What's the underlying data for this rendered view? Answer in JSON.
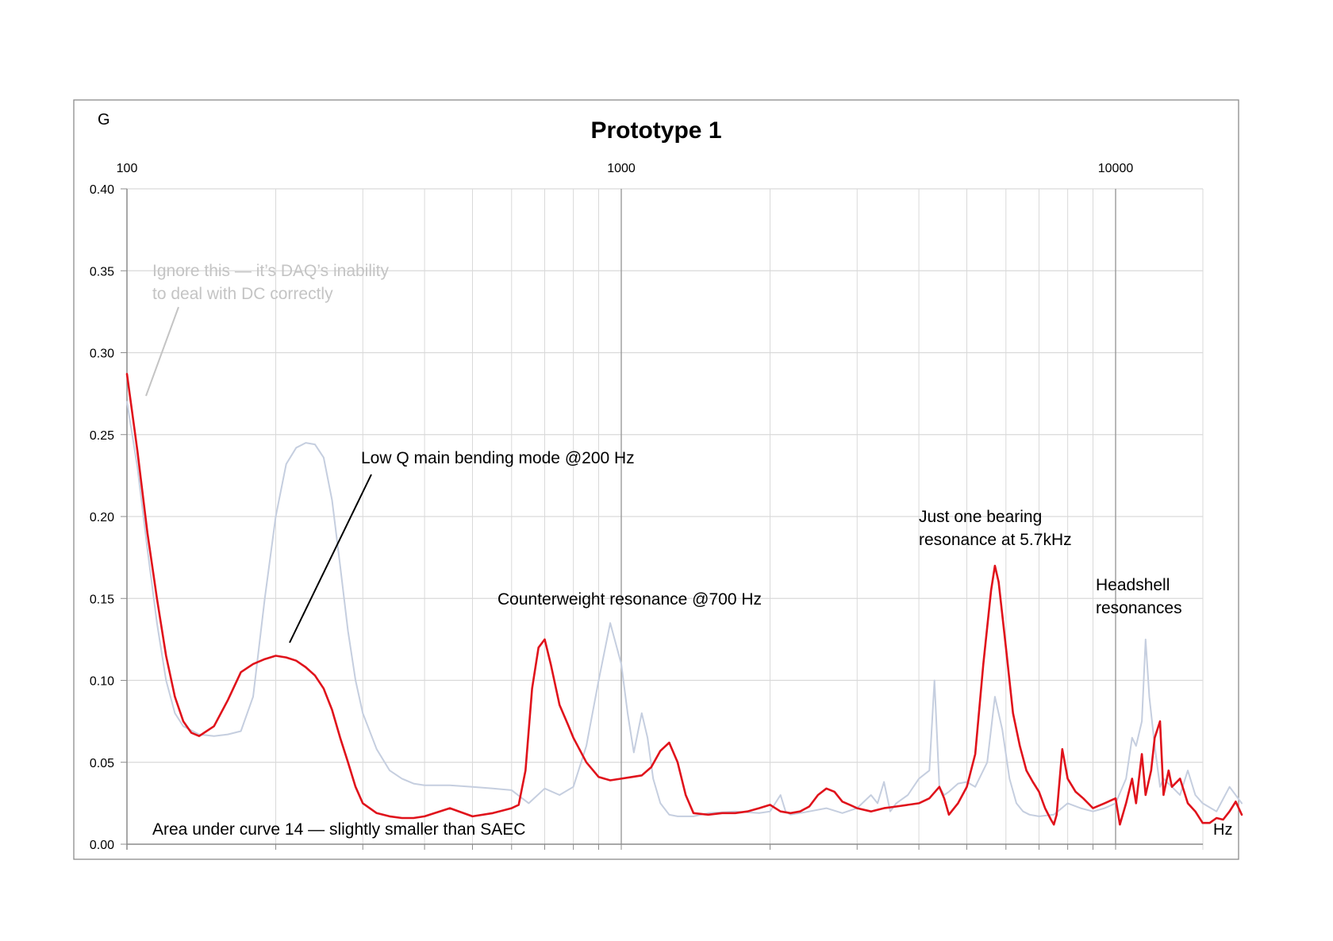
{
  "chart_data": {
    "type": "line",
    "title": "Prototype 1",
    "ylabel": "G",
    "xlabel": "Hz",
    "x_scale": "log",
    "xlim": [
      100,
      18000
    ],
    "ylim": [
      0,
      0.4
    ],
    "y_ticks": [
      "0.00",
      "0.05",
      "0.10",
      "0.15",
      "0.20",
      "0.25",
      "0.30",
      "0.35",
      "0.40"
    ],
    "x_ticks": [
      "100",
      "1000",
      "10000"
    ],
    "grid": true,
    "colors": {
      "series_red": "#e0121b",
      "series_grey": "#c5cedf",
      "grid": "#d9d9d9",
      "axis": "#8c8c8c",
      "note_grey": "#c4c4c4"
    },
    "annotations": {
      "dc_note_line1": "Ignore this — it’s DAQ’s inability",
      "dc_note_line2": "to deal with DC correctly",
      "bending": "Low Q main bending mode @200 Hz",
      "counterweight": "Counterweight resonance @700 Hz",
      "bearing_line1": "Just one bearing",
      "bearing_line2": "resonance at 5.7kHz",
      "headshell_line1": "Headshell",
      "headshell_line2": "resonances",
      "area": "Area under curve 14 — slightly smaller than SAEC"
    },
    "series": [
      {
        "x": [
          100,
          105,
          110,
          115,
          120,
          125,
          130,
          135,
          140,
          150,
          160,
          170,
          180,
          190,
          200,
          210,
          220,
          230,
          240,
          250,
          260,
          270,
          280,
          290,
          300,
          320,
          340,
          360,
          380,
          400,
          450,
          500,
          550,
          600,
          620,
          640,
          660,
          680,
          700,
          720,
          750,
          780,
          800,
          850,
          900,
          950,
          1000,
          1050,
          1100,
          1150,
          1200,
          1250,
          1300,
          1350,
          1400,
          1500,
          1600,
          1700,
          1800,
          1900,
          2000,
          2100,
          2200,
          2300,
          2400,
          2500,
          2600,
          2700,
          2800,
          2900,
          3000,
          3200,
          3400,
          3600,
          3800,
          4000,
          4200,
          4400,
          4500,
          4600,
          4800,
          5000,
          5200,
          5400,
          5600,
          5700,
          5800,
          6000,
          6200,
          6400,
          6600,
          6800,
          7000,
          7200,
          7400,
          7500,
          7600,
          7800,
          8000,
          8300,
          8600,
          9000,
          9500,
          10000,
          10200,
          10500,
          10800,
          11000,
          11300,
          11500,
          11800,
          12000,
          12300,
          12500,
          12800,
          13000,
          13500,
          14000,
          14500,
          15000,
          15500,
          16000,
          16500,
          17000,
          17500,
          18000
        ],
        "y": [
          0.287,
          0.24,
          0.19,
          0.15,
          0.115,
          0.09,
          0.075,
          0.068,
          0.066,
          0.072,
          0.088,
          0.105,
          0.11,
          0.113,
          0.115,
          0.114,
          0.112,
          0.108,
          0.103,
          0.095,
          0.082,
          0.065,
          0.05,
          0.035,
          0.025,
          0.019,
          0.017,
          0.016,
          0.016,
          0.017,
          0.022,
          0.017,
          0.019,
          0.022,
          0.024,
          0.045,
          0.095,
          0.12,
          0.125,
          0.11,
          0.085,
          0.073,
          0.065,
          0.05,
          0.041,
          0.039,
          0.04,
          0.041,
          0.042,
          0.047,
          0.057,
          0.062,
          0.05,
          0.03,
          0.019,
          0.018,
          0.019,
          0.019,
          0.02,
          0.022,
          0.024,
          0.02,
          0.019,
          0.02,
          0.023,
          0.03,
          0.034,
          0.032,
          0.026,
          0.024,
          0.022,
          0.02,
          0.022,
          0.023,
          0.024,
          0.025,
          0.028,
          0.035,
          0.028,
          0.018,
          0.025,
          0.035,
          0.055,
          0.11,
          0.155,
          0.17,
          0.16,
          0.12,
          0.08,
          0.06,
          0.045,
          0.038,
          0.032,
          0.022,
          0.015,
          0.012,
          0.018,
          0.058,
          0.04,
          0.032,
          0.028,
          0.022,
          0.025,
          0.028,
          0.012,
          0.025,
          0.04,
          0.025,
          0.055,
          0.03,
          0.045,
          0.065,
          0.075,
          0.03,
          0.045,
          0.035,
          0.04,
          0.025,
          0.02,
          0.013,
          0.013,
          0.016,
          0.015,
          0.02,
          0.026,
          0.018
        ],
        "color": "#e0121b"
      },
      {
        "x": [
          100,
          105,
          110,
          115,
          120,
          125,
          130,
          140,
          150,
          160,
          170,
          180,
          190,
          200,
          210,
          220,
          230,
          240,
          250,
          260,
          270,
          280,
          290,
          300,
          320,
          340,
          360,
          380,
          400,
          450,
          500,
          550,
          600,
          650,
          700,
          750,
          800,
          850,
          900,
          950,
          1000,
          1030,
          1060,
          1100,
          1130,
          1160,
          1200,
          1250,
          1300,
          1400,
          1500,
          1700,
          1900,
          2000,
          2100,
          2150,
          2200,
          2400,
          2600,
          2800,
          3000,
          3200,
          3300,
          3400,
          3500,
          3600,
          3800,
          4000,
          4200,
          4300,
          4400,
          4500,
          4600,
          4800,
          5000,
          5200,
          5500,
          5700,
          5900,
          6100,
          6300,
          6500,
          6700,
          7000,
          7500,
          8000,
          8500,
          9000,
          9500,
          10000,
          10500,
          10800,
          11000,
          11300,
          11500,
          11700,
          12000,
          12300,
          12500,
          13000,
          13500,
          14000,
          14500,
          15000,
          16000,
          17000,
          18000
        ],
        "y": [
          0.27,
          0.23,
          0.18,
          0.135,
          0.1,
          0.08,
          0.072,
          0.067,
          0.066,
          0.067,
          0.069,
          0.09,
          0.15,
          0.2,
          0.232,
          0.242,
          0.245,
          0.244,
          0.236,
          0.21,
          0.17,
          0.13,
          0.1,
          0.08,
          0.058,
          0.045,
          0.04,
          0.037,
          0.036,
          0.036,
          0.035,
          0.034,
          0.033,
          0.025,
          0.034,
          0.03,
          0.035,
          0.06,
          0.1,
          0.135,
          0.11,
          0.08,
          0.056,
          0.08,
          0.065,
          0.04,
          0.025,
          0.018,
          0.017,
          0.017,
          0.019,
          0.02,
          0.019,
          0.02,
          0.03,
          0.02,
          0.018,
          0.02,
          0.022,
          0.019,
          0.022,
          0.03,
          0.025,
          0.038,
          0.02,
          0.025,
          0.03,
          0.04,
          0.045,
          0.1,
          0.035,
          0.03,
          0.032,
          0.037,
          0.038,
          0.035,
          0.05,
          0.09,
          0.07,
          0.04,
          0.025,
          0.02,
          0.018,
          0.017,
          0.018,
          0.025,
          0.022,
          0.02,
          0.022,
          0.025,
          0.04,
          0.065,
          0.06,
          0.075,
          0.125,
          0.09,
          0.06,
          0.035,
          0.04,
          0.035,
          0.03,
          0.045,
          0.03,
          0.025,
          0.02,
          0.035,
          0.025
        ],
        "color": "#c5cedf"
      }
    ]
  }
}
